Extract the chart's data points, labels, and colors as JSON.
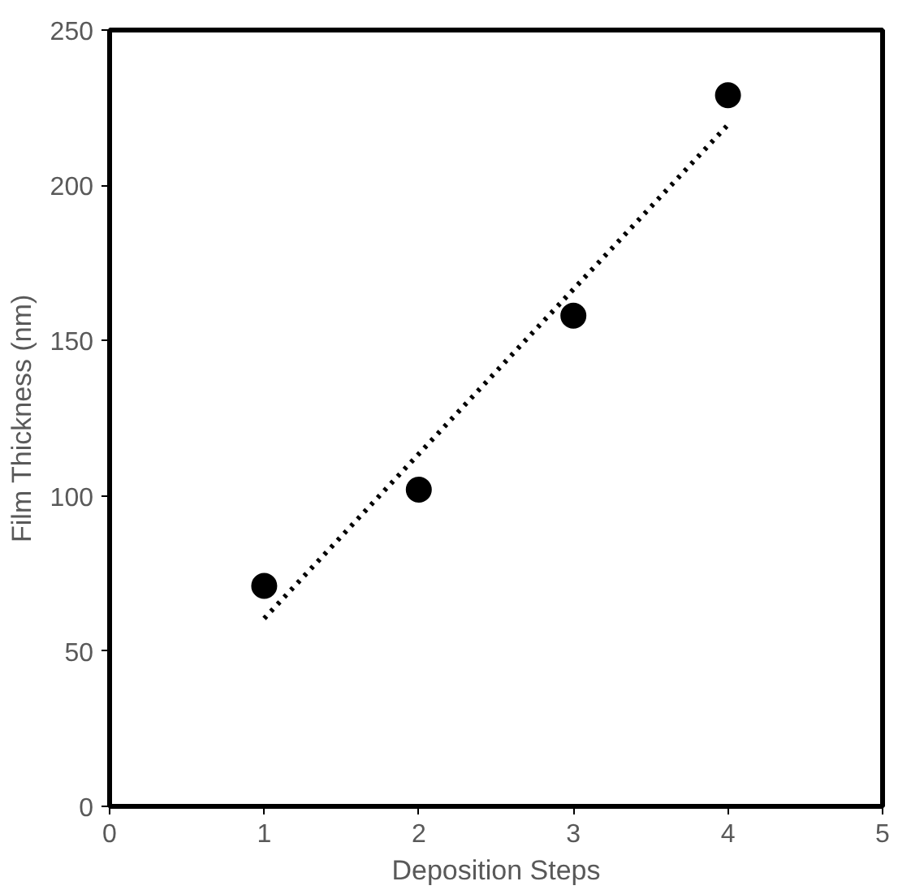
{
  "chart_data": {
    "type": "scatter",
    "xlabel": "Deposition Steps",
    "ylabel": "Film Thickness (nm)",
    "x": [
      1,
      2,
      3,
      4
    ],
    "series": [
      {
        "color": "#000000",
        "marker": "circle",
        "values": [
          71,
          102,
          158,
          229
        ]
      },
      {
        "type": "line",
        "color": "#000000",
        "x": [
          1,
          4
        ],
        "values": [
          60.5,
          219.5
        ],
        "line_style": "dotted",
        "marker": "none"
      }
    ],
    "xlim": [
      0,
      5
    ],
    "xticks": [
      0,
      1,
      2,
      3,
      4,
      5
    ],
    "ylim": [
      0,
      250
    ],
    "yticks": [
      0,
      50,
      100,
      150,
      200,
      250
    ],
    "grid": false
  }
}
